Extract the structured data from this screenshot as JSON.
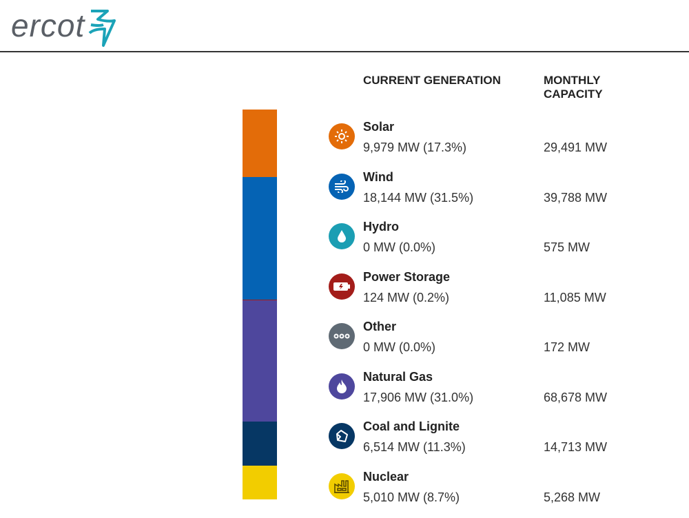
{
  "logo": {
    "text": "ercot",
    "accent": "#1ba3b8"
  },
  "columns": {
    "current": "CURRENT GENERATION",
    "capacity": "MONTHLY CAPACITY"
  },
  "sources": [
    {
      "name": "Solar",
      "current": "9,979 MW (17.3%)",
      "capacity": "29,491 MW",
      "percent": 17.3,
      "color": "#e36c09",
      "icon": "sun-icon"
    },
    {
      "name": "Wind",
      "current": "18,144 MW (31.5%)",
      "capacity": "39,788 MW",
      "percent": 31.5,
      "color": "#0563b4",
      "icon": "wind-icon"
    },
    {
      "name": "Hydro",
      "current": "0 MW (0.0%)",
      "capacity": "575 MW",
      "percent": 0.0,
      "color": "#1b9eb3",
      "icon": "water-drop-icon"
    },
    {
      "name": "Power Storage",
      "current": "124 MW (0.2%)",
      "capacity": "11,085 MW",
      "percent": 0.2,
      "color": "#a31d1a",
      "icon": "battery-icon"
    },
    {
      "name": "Other",
      "current": "0 MW (0.0%)",
      "capacity": "172 MW",
      "percent": 0.0,
      "color": "#5f6a74",
      "icon": "ellipsis-icon"
    },
    {
      "name": "Natural Gas",
      "current": "17,906 MW (31.0%)",
      "capacity": "68,678 MW",
      "percent": 31.0,
      "color": "#4e479d",
      "icon": "flame-icon"
    },
    {
      "name": "Coal and Lignite",
      "current": "6,514 MW (11.3%)",
      "capacity": "14,713 MW",
      "percent": 11.3,
      "color": "#063764",
      "icon": "coal-icon"
    },
    {
      "name": "Nuclear",
      "current": "5,010 MW (8.7%)",
      "capacity": "5,268 MW",
      "percent": 8.7,
      "color": "#f2cd00",
      "icon": "power-plant-icon"
    }
  ]
}
